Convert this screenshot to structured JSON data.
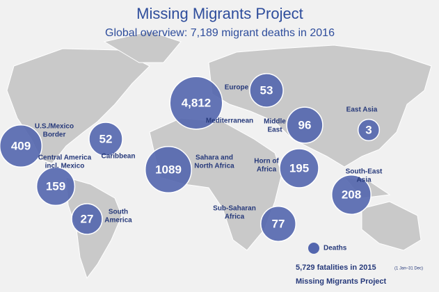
{
  "chart_data": {
    "type": "bubble-map",
    "title": "Missing Migrants Project",
    "subtitle": "Global overview: 7,189 migrant deaths in 2016",
    "color": "#5366ae",
    "regions": [
      {
        "label": [
          "U.S./Mexico",
          "Border"
        ],
        "value": 409
      },
      {
        "label": [
          "Caribbean"
        ],
        "value": 52
      },
      {
        "label": [
          "Central America",
          "incl. Mexico"
        ],
        "value": 159
      },
      {
        "label": [
          "South",
          "America"
        ],
        "value": 27
      },
      {
        "label": [
          "Mediterranean"
        ],
        "value": 4812,
        "value_label": "4,812"
      },
      {
        "label": [
          "Europe"
        ],
        "value": 53
      },
      {
        "label": [
          "Sahara and",
          "North Africa"
        ],
        "value": 1089
      },
      {
        "label": [
          "Middle",
          "East"
        ],
        "value": 96
      },
      {
        "label": [
          "East Asia"
        ],
        "value": 3
      },
      {
        "label": [
          "Horn of",
          "Africa"
        ],
        "value": 195
      },
      {
        "label": [
          "South-East",
          "Asia"
        ],
        "value": 208
      },
      {
        "label": [
          "Sub-Saharan",
          "Africa"
        ],
        "value": 77
      }
    ],
    "legend": "Deaths",
    "footnote": "5,729 fatalities in 2015",
    "footnote_note": "(1 Jan–31 Dec)",
    "source": "Missing Migrants Project"
  }
}
